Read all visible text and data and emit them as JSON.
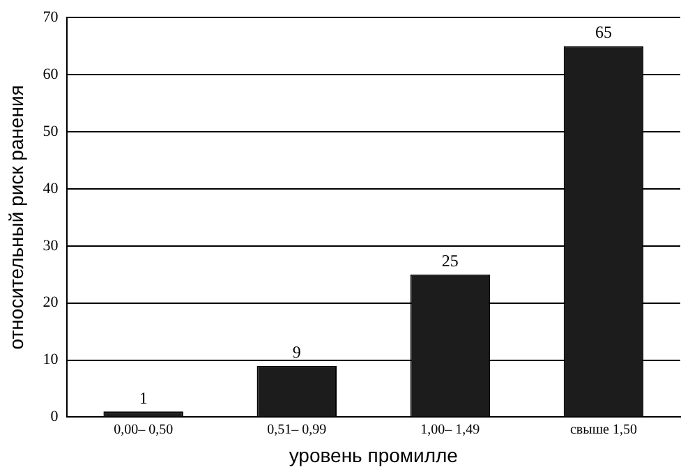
{
  "chart_data": {
    "type": "bar",
    "xlabel": "уровень промилле",
    "ylabel": "относительный риск ранения",
    "categories": [
      "0,00– 0,50",
      "0,51– 0,99",
      "1,00– 1,49",
      "свыше 1,50"
    ],
    "values": [
      1,
      9,
      25,
      65
    ],
    "color": "#1c1c1c",
    "data_labels": true,
    "ylim": [
      0,
      70
    ],
    "yticks": [
      0,
      10,
      20,
      30,
      40,
      50,
      60,
      70
    ],
    "grid": "y",
    "legend": false
  }
}
